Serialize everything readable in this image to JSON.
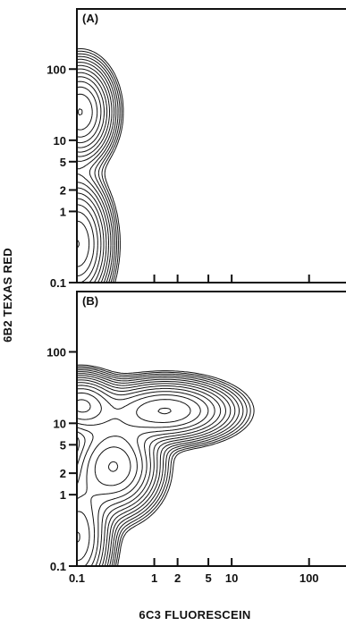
{
  "chart_data": [
    {
      "type": "contour",
      "panel_label": "(A)",
      "scale": "log",
      "xlim": [
        0.1,
        300
      ],
      "ylim": [
        0.1,
        700
      ],
      "y_ticks": [
        {
          "value": 0.1,
          "label": "0.1"
        },
        {
          "value": 1,
          "label": "1"
        },
        {
          "value": 2,
          "label": "2"
        },
        {
          "value": 5,
          "label": "5"
        },
        {
          "value": 10,
          "label": "10"
        },
        {
          "value": 100,
          "label": "100"
        }
      ],
      "x_ticks": [
        {
          "value": 0.1,
          "label": ""
        },
        {
          "value": 1,
          "label": ""
        },
        {
          "value": 2,
          "label": ""
        },
        {
          "value": 5,
          "label": ""
        },
        {
          "value": 10,
          "label": ""
        },
        {
          "value": 100,
          "label": ""
        }
      ],
      "populations": [
        {
          "x": 0.1,
          "y": 0.35,
          "sx": 0.22,
          "sy": 0.45
        },
        {
          "x": 0.11,
          "y": 25,
          "sx": 0.22,
          "sy": 0.35
        }
      ]
    },
    {
      "type": "contour",
      "panel_label": "(B)",
      "scale": "log",
      "xlim": [
        0.1,
        300
      ],
      "ylim": [
        0.1,
        700
      ],
      "y_ticks": [
        {
          "value": 0.1,
          "label": "0.1"
        },
        {
          "value": 1,
          "label": "1"
        },
        {
          "value": 2,
          "label": "2"
        },
        {
          "value": 5,
          "label": "5"
        },
        {
          "value": 10,
          "label": "10"
        },
        {
          "value": 100,
          "label": "100"
        }
      ],
      "x_ticks": [
        {
          "value": 0.1,
          "label": "0.1"
        },
        {
          "value": 1,
          "label": "1"
        },
        {
          "value": 2,
          "label": "2"
        },
        {
          "value": 5,
          "label": "5"
        },
        {
          "value": 10,
          "label": "10"
        },
        {
          "value": 100,
          "label": "100"
        }
      ],
      "populations": [
        {
          "x": 0.1,
          "y": 0.25,
          "sx": 0.22,
          "sy": 0.45
        },
        {
          "x": 0.11,
          "y": 18,
          "sx": 0.25,
          "sy": 0.22
        },
        {
          "x": 1.4,
          "y": 15,
          "sx": 0.45,
          "sy": 0.22
        },
        {
          "x": 0.3,
          "y": 2.5,
          "sx": 0.3,
          "sy": 0.35
        }
      ]
    }
  ],
  "xlabel": "6C3 FLUORESCEIN",
  "ylabel": "6B2 TEXAS RED"
}
